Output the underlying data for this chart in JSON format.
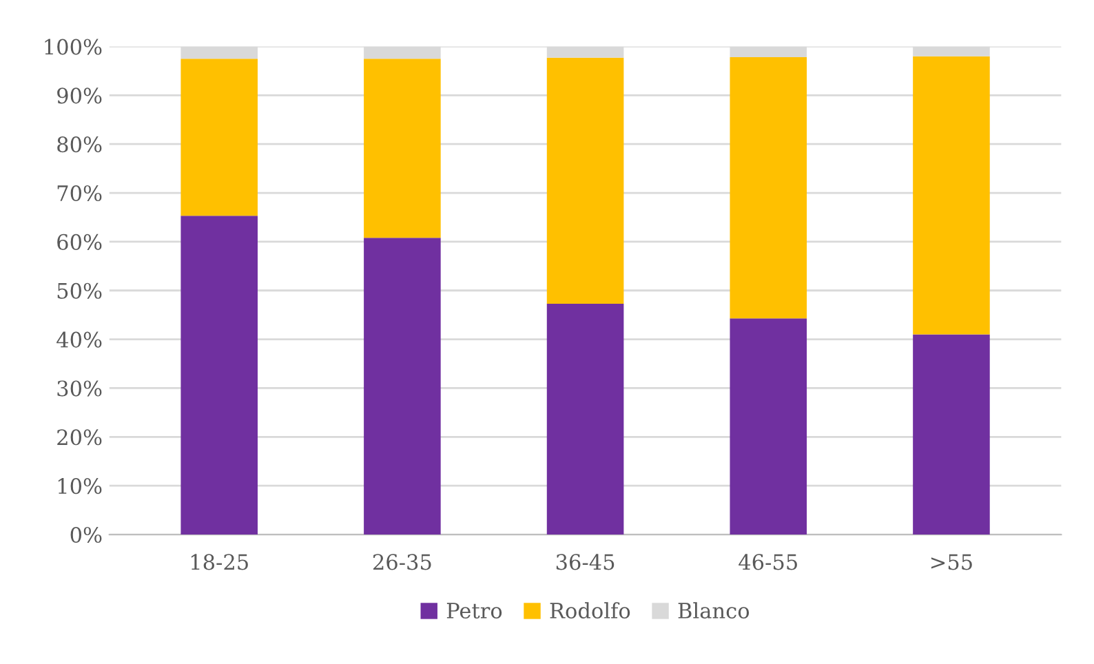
{
  "chart_data": {
    "type": "bar",
    "stacked": true,
    "categories": [
      "18-25",
      "26-35",
      "36-45",
      "46-55",
      ">55"
    ],
    "series": [
      {
        "name": "Petro",
        "color": "#7030a0",
        "values": [
          65.3,
          60.8,
          47.3,
          44.3,
          41
        ]
      },
      {
        "name": "Rodolfo",
        "color": "#ffc000",
        "values": [
          32.2,
          36.7,
          50.4,
          53.5,
          57
        ]
      },
      {
        "name": "Blanco",
        "color": "#d9d9d9",
        "values": [
          2.5,
          2.5,
          2.3,
          2.2,
          2
        ]
      }
    ],
    "ylim": [
      0,
      100
    ],
    "yticks": [
      {
        "value": 0,
        "label": "0%"
      },
      {
        "value": 10,
        "label": "10%"
      },
      {
        "value": 20,
        "label": "20%"
      },
      {
        "value": 30,
        "label": "30%"
      },
      {
        "value": 40,
        "label": "40%"
      },
      {
        "value": 50,
        "label": "50%"
      },
      {
        "value": 60,
        "label": "60%"
      },
      {
        "value": 70,
        "label": "70%"
      },
      {
        "value": 80,
        "label": "80%"
      },
      {
        "value": 90,
        "label": "90%"
      },
      {
        "value": 100,
        "label": "100%"
      }
    ],
    "grid": "y",
    "legend": "bottom"
  }
}
